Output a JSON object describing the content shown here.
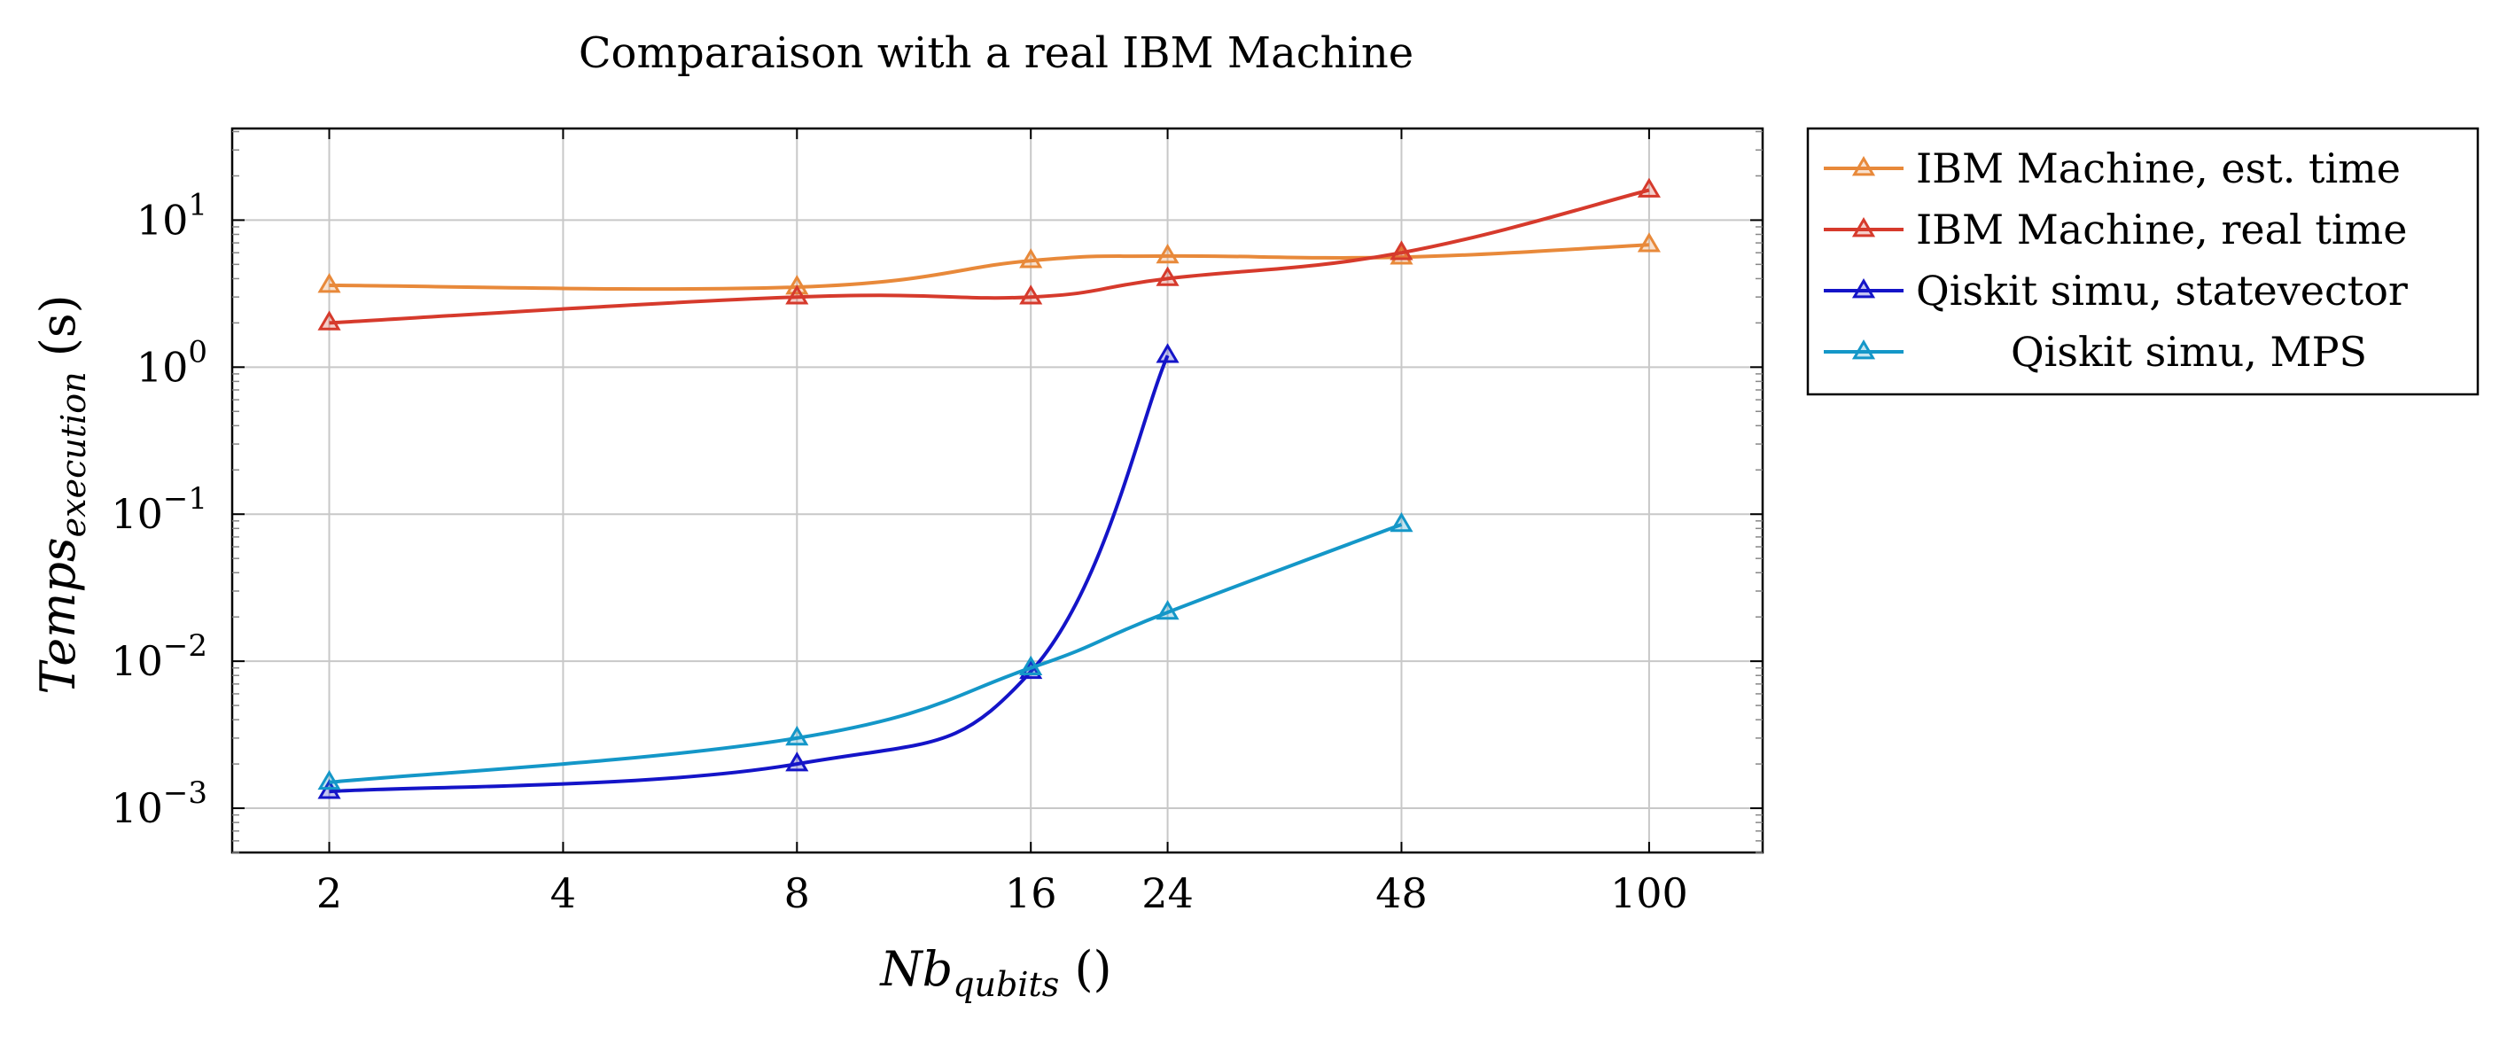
{
  "chart_data": {
    "type": "line",
    "title": "Comparaison with a real IBM Machine",
    "xlabel": {
      "main": "Nb",
      "sub": "qubits",
      "unit": "()"
    },
    "ylabel": {
      "main": "Temps",
      "sub": "execution",
      "unit": "(s)"
    },
    "x_ticks": [
      2,
      4,
      8,
      16,
      24,
      48,
      100
    ],
    "x_tick_labels": [
      "2",
      "4",
      "8",
      "16",
      "24",
      "48",
      "100"
    ],
    "x_scale": "log",
    "xlim": [
      1.5,
      140
    ],
    "y_scale": "log",
    "ylim": [
      0.0005,
      42
    ],
    "y_ticks": [
      {
        "base": "10",
        "exp": "−3",
        "value": 0.001
      },
      {
        "base": "10",
        "exp": "−2",
        "value": 0.01
      },
      {
        "base": "10",
        "exp": "−1",
        "value": 0.1
      },
      {
        "base": "10",
        "exp": "0",
        "value": 1
      },
      {
        "base": "10",
        "exp": "1",
        "value": 10
      }
    ],
    "grid": true,
    "legend_position": "outside-right",
    "series": [
      {
        "name": "IBM Machine, est. time",
        "color": "#e8893a",
        "marker": "triangle",
        "x": [
          2,
          8,
          16,
          24,
          48,
          100
        ],
        "y": [
          3.6,
          3.5,
          5.3,
          5.7,
          5.6,
          6.8
        ]
      },
      {
        "name": "IBM Machine, real time",
        "color": "#d63a2c",
        "marker": "triangle",
        "x": [
          2,
          8,
          16,
          24,
          48,
          100
        ],
        "y": [
          2.0,
          3.0,
          3.0,
          4.0,
          6.0,
          16.0
        ]
      },
      {
        "name": "Qiskit simu, statevector",
        "color": "#1414c8",
        "marker": "triangle",
        "x": [
          2,
          8,
          16,
          24
        ],
        "y": [
          0.0013,
          0.002,
          0.0085,
          1.2
        ]
      },
      {
        "name": "Qiskit simu, MPS",
        "color": "#1497c8",
        "marker": "triangle",
        "x": [
          2,
          8,
          16,
          24,
          48
        ],
        "y": [
          0.0015,
          0.003,
          0.009,
          0.0215,
          0.085
        ]
      }
    ]
  }
}
